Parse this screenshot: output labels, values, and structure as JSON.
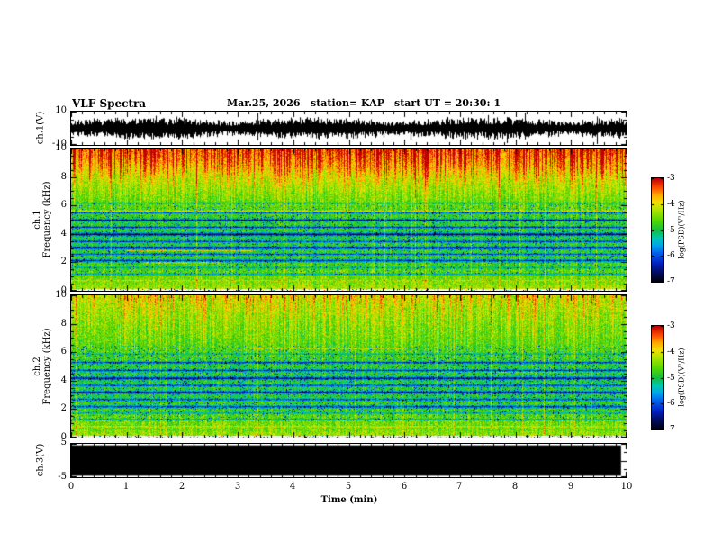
{
  "header": {
    "title": "VLF Spectra",
    "date": "Mar.25, 2026",
    "station": "station= KAP",
    "start_ut": "start UT =  20:30: 1"
  },
  "axes": {
    "time_label": "Time (min)",
    "time_ticks": [
      "0",
      "1",
      "2",
      "3",
      "4",
      "5",
      "6",
      "7",
      "8",
      "9",
      "10"
    ],
    "wave1": {
      "label": "ch.1(V)",
      "ymax": "10",
      "ymin": "-10"
    },
    "spec1": {
      "ch": "ch.1",
      "freq_label": "Frequency (kHz)",
      "yticks": [
        "10",
        "8",
        "6",
        "4",
        "2",
        "0"
      ]
    },
    "spec2": {
      "ch": "ch.2",
      "freq_label": "Frequency (kHz)",
      "yticks": [
        "10",
        "8",
        "6",
        "4",
        "2",
        "0"
      ]
    },
    "wave3": {
      "label": "ch.3(V)",
      "ymax": "5",
      "ymin": "-5"
    }
  },
  "colorbar": {
    "ticks": [
      "-3",
      "-4",
      "-5",
      "-6",
      "-7"
    ],
    "label": "log(PSD)(V²/Hz)",
    "z_range": [
      -7,
      -3
    ],
    "stops": [
      {
        "t": 0.0,
        "c": "#000008"
      },
      {
        "t": 0.08,
        "c": "#000a50"
      },
      {
        "t": 0.18,
        "c": "#0020c0"
      },
      {
        "t": 0.28,
        "c": "#0060f0"
      },
      {
        "t": 0.36,
        "c": "#00a8e8"
      },
      {
        "t": 0.43,
        "c": "#00c8b0"
      },
      {
        "t": 0.5,
        "c": "#10c040"
      },
      {
        "t": 0.6,
        "c": "#58d800"
      },
      {
        "t": 0.7,
        "c": "#b0e400"
      },
      {
        "t": 0.77,
        "c": "#f0e000"
      },
      {
        "t": 0.84,
        "c": "#ffa800"
      },
      {
        "t": 0.91,
        "c": "#ff5000"
      },
      {
        "t": 1.0,
        "c": "#c00000"
      }
    ]
  },
  "chart_data": [
    {
      "type": "line",
      "name": "ch1_waveform",
      "ylabel": "ch.1(V)",
      "x_range": [
        0,
        10
      ],
      "y_range": [
        -10,
        10
      ],
      "seed": 7,
      "envelope_base": 4.2,
      "envelope_var": 2.4,
      "spike_prob": 0.015,
      "summary": "continuous broadband noise oscillating roughly between -9 and +9 V for the full 10 minutes"
    },
    {
      "type": "heatmap",
      "name": "ch1_spectrogram",
      "x_range": [
        0,
        10
      ],
      "y_range": [
        0,
        10
      ],
      "z_range": [
        -7,
        -3
      ],
      "seed": 11,
      "noise": 0.38,
      "profile": [
        [
          0,
          -4.0
        ],
        [
          0.2,
          -4.25
        ],
        [
          0.6,
          -4.45
        ],
        [
          1.2,
          -4.55
        ],
        [
          1.8,
          -4.7
        ],
        [
          2.5,
          -4.85
        ],
        [
          4,
          -4.9
        ],
        [
          5,
          -4.8
        ],
        [
          6,
          -4.6
        ],
        [
          7,
          -4.45
        ],
        [
          8,
          -4.15
        ],
        [
          8.7,
          -3.85
        ],
        [
          9.4,
          -3.6
        ],
        [
          10,
          -3.45
        ]
      ],
      "dark_bands": [
        {
          "f": 1.2,
          "w": 0.1,
          "d": -0.9
        },
        {
          "f": 1.65,
          "w": 0.1,
          "d": -0.8
        },
        {
          "f": 2.15,
          "w": 0.14,
          "d": -1.5
        },
        {
          "f": 2.6,
          "w": 0.12,
          "d": -1.2
        },
        {
          "f": 3.05,
          "w": 0.16,
          "d": -1.7
        },
        {
          "f": 3.5,
          "w": 0.12,
          "d": -1.3
        },
        {
          "f": 4.0,
          "w": 0.16,
          "d": -1.8
        },
        {
          "f": 4.5,
          "w": 0.12,
          "d": -1.4
        },
        {
          "f": 5.0,
          "w": 0.14,
          "d": -1.6
        },
        {
          "f": 5.5,
          "w": 0.1,
          "d": -1.2
        },
        {
          "f": 6.2,
          "w": 0.08,
          "d": -0.7
        }
      ],
      "hot_bands": [
        {
          "f": 5.65,
          "w": 0.06,
          "d": 0.9,
          "x0": 0,
          "x1": 10
        },
        {
          "f": 2.85,
          "w": 0.08,
          "d": 1.0,
          "x0": 1.0,
          "x1": 3.3
        },
        {
          "f": 2.0,
          "w": 0.07,
          "d": 0.8,
          "x0": 1.3,
          "x1": 2.7
        },
        {
          "f": 0.75,
          "w": 0.06,
          "d": 0.8,
          "x0": 0,
          "x1": 10
        }
      ],
      "speckle": {
        "fmin": 1.2,
        "fmax": 6.2,
        "prob": 0.07,
        "delta": -1.3
      },
      "streaks": {
        "f0": 5.5,
        "prob": 0.45,
        "amp": 1.3
      },
      "lines": {
        "prob": 0.035,
        "amp": 0.55
      },
      "column_drift": 0.22,
      "lightband": 0.16,
      "summary": "intense red/orange power above ~8 kHz with dense vertical streaks, green background 1-8 kHz with cyan/blue speckle, narrow dark-blue horizontal interference bands between ~2 and 5.5 kHz, pale strip at 0 kHz"
    },
    {
      "type": "heatmap",
      "name": "ch2_spectrogram",
      "x_range": [
        0,
        10
      ],
      "y_range": [
        0,
        10
      ],
      "z_range": [
        -7,
        -3
      ],
      "seed": 23,
      "noise": 0.4,
      "profile": [
        [
          0,
          -4.1
        ],
        [
          0.2,
          -4.3
        ],
        [
          0.6,
          -4.5
        ],
        [
          1.2,
          -4.5
        ],
        [
          2,
          -4.75
        ],
        [
          3,
          -4.9
        ],
        [
          4,
          -4.9
        ],
        [
          5,
          -4.85
        ],
        [
          6,
          -4.7
        ],
        [
          7,
          -4.6
        ],
        [
          8,
          -4.5
        ],
        [
          9,
          -4.35
        ],
        [
          10,
          -4.15
        ]
      ],
      "dark_bands": [
        {
          "f": 1.3,
          "w": 0.1,
          "d": -0.9
        },
        {
          "f": 1.75,
          "w": 0.1,
          "d": -0.8
        },
        {
          "f": 2.2,
          "w": 0.14,
          "d": -1.5
        },
        {
          "f": 2.7,
          "w": 0.12,
          "d": -1.3
        },
        {
          "f": 3.2,
          "w": 0.16,
          "d": -1.7
        },
        {
          "f": 3.7,
          "w": 0.12,
          "d": -1.3
        },
        {
          "f": 4.2,
          "w": 0.16,
          "d": -1.7
        },
        {
          "f": 4.75,
          "w": 0.12,
          "d": -1.4
        },
        {
          "f": 5.3,
          "w": 0.12,
          "d": -1.5
        },
        {
          "f": 5.9,
          "w": 0.08,
          "d": -0.8
        }
      ],
      "hot_bands": [
        {
          "f": 6.3,
          "w": 0.06,
          "d": 0.8,
          "x0": 3.2,
          "x1": 6.0
        },
        {
          "f": 0.8,
          "w": 0.06,
          "d": 0.7,
          "x0": 0,
          "x1": 10
        },
        {
          "f": 4.6,
          "w": 0.05,
          "d": 0.6,
          "x0": 7.5,
          "x1": 9.0
        }
      ],
      "speckle": {
        "fmin": 1.2,
        "fmax": 6.5,
        "prob": 0.08,
        "delta": -1.3
      },
      "streaks": {
        "f0": 5.0,
        "prob": 0.42,
        "amp": 0.8
      },
      "lines": {
        "prob": 0.03,
        "amp": 0.5
      },
      "column_drift": 0.2,
      "lightband": 0.16,
      "summary": "yellow-green power at 8-10 kHz with occasional orange vertical streaks, green/cyan background with dark-blue horizontal interference bands between ~2 and 5.5 kHz, pale strip at 0 kHz"
    },
    {
      "type": "line",
      "name": "ch3_waveform",
      "ylabel": "ch.3(V)",
      "x_range": [
        0,
        10
      ],
      "y_range": [
        -5,
        5
      ],
      "seed": 5,
      "saturated_level": 4.55,
      "end_time": 9.9,
      "summary": "fully saturated/clipped signal rendered as a solid black band spanning about ±4.5 V for nearly the full record"
    }
  ]
}
